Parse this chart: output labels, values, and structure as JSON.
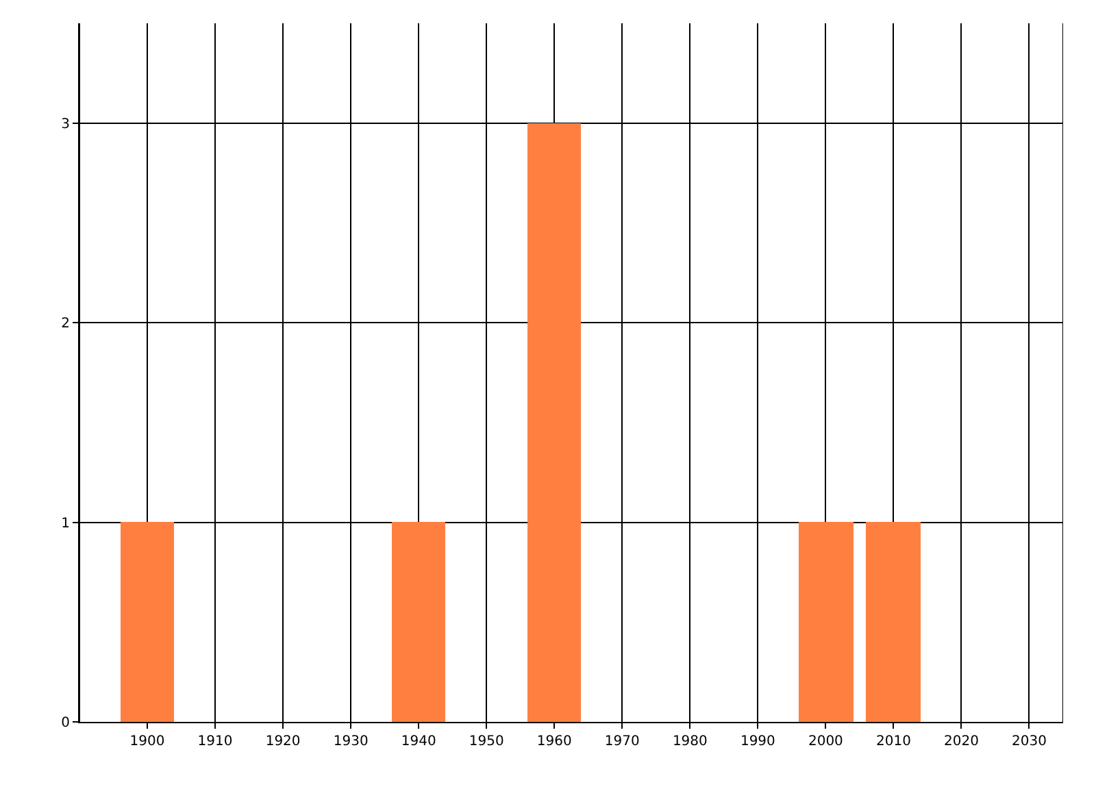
{
  "chart_data": {
    "type": "bar",
    "x": [
      1900,
      1940,
      1960,
      2000,
      2010
    ],
    "values": [
      1,
      1,
      3,
      1,
      1
    ],
    "color": "#ff7f41",
    "xlim": [
      1890,
      2035
    ],
    "xticks": [
      1900,
      1910,
      1920,
      1930,
      1940,
      1950,
      1960,
      1970,
      1980,
      1990,
      2000,
      2010,
      2020,
      2030
    ],
    "ylim": [
      0,
      3.5
    ],
    "yticks": [
      0,
      1,
      2,
      3
    ],
    "grid": true
  }
}
